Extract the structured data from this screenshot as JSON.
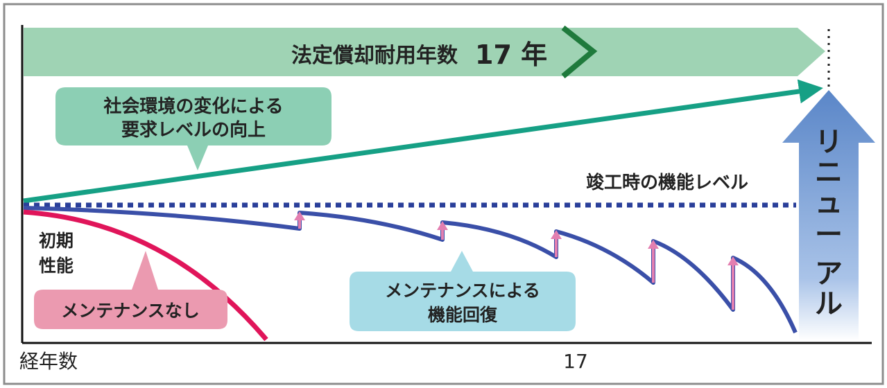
{
  "top_banner": {
    "text": "法定償却耐用年数",
    "years": "17 年"
  },
  "rising_callout": {
    "line1": "社会環境の変化による",
    "line2": "要求レベルの向上"
  },
  "baseline_label": "竣工時の機能レベル",
  "initial_label": {
    "line1": "初期",
    "line2": "性能"
  },
  "no_maintenance_callout": "メンテナンスなし",
  "maintenance_callout": {
    "line1": "メンテナンスによる",
    "line2": "機能回復"
  },
  "renewal_label": [
    "リ",
    "ニ",
    "ュ",
    "ー",
    "ア",
    "ル"
  ],
  "x_axis": {
    "label": "経年数",
    "tick": "17"
  },
  "colors": {
    "banner": "#9fd3b4",
    "banner_chevron": "#1f7a3c",
    "rising_line": "#16a085",
    "rising_callout": "#8ccfb4",
    "baseline": "#2a3f9a",
    "maintained_curve": "#3a4fa8",
    "recovery_arrow": "#e37fb0",
    "no_maintenance_curve": "#e0155a",
    "no_maintenance_callout": "#eb9ab0",
    "maintenance_callout": "#a6dbe6",
    "renewal_arrow": "#6d93cf"
  }
}
